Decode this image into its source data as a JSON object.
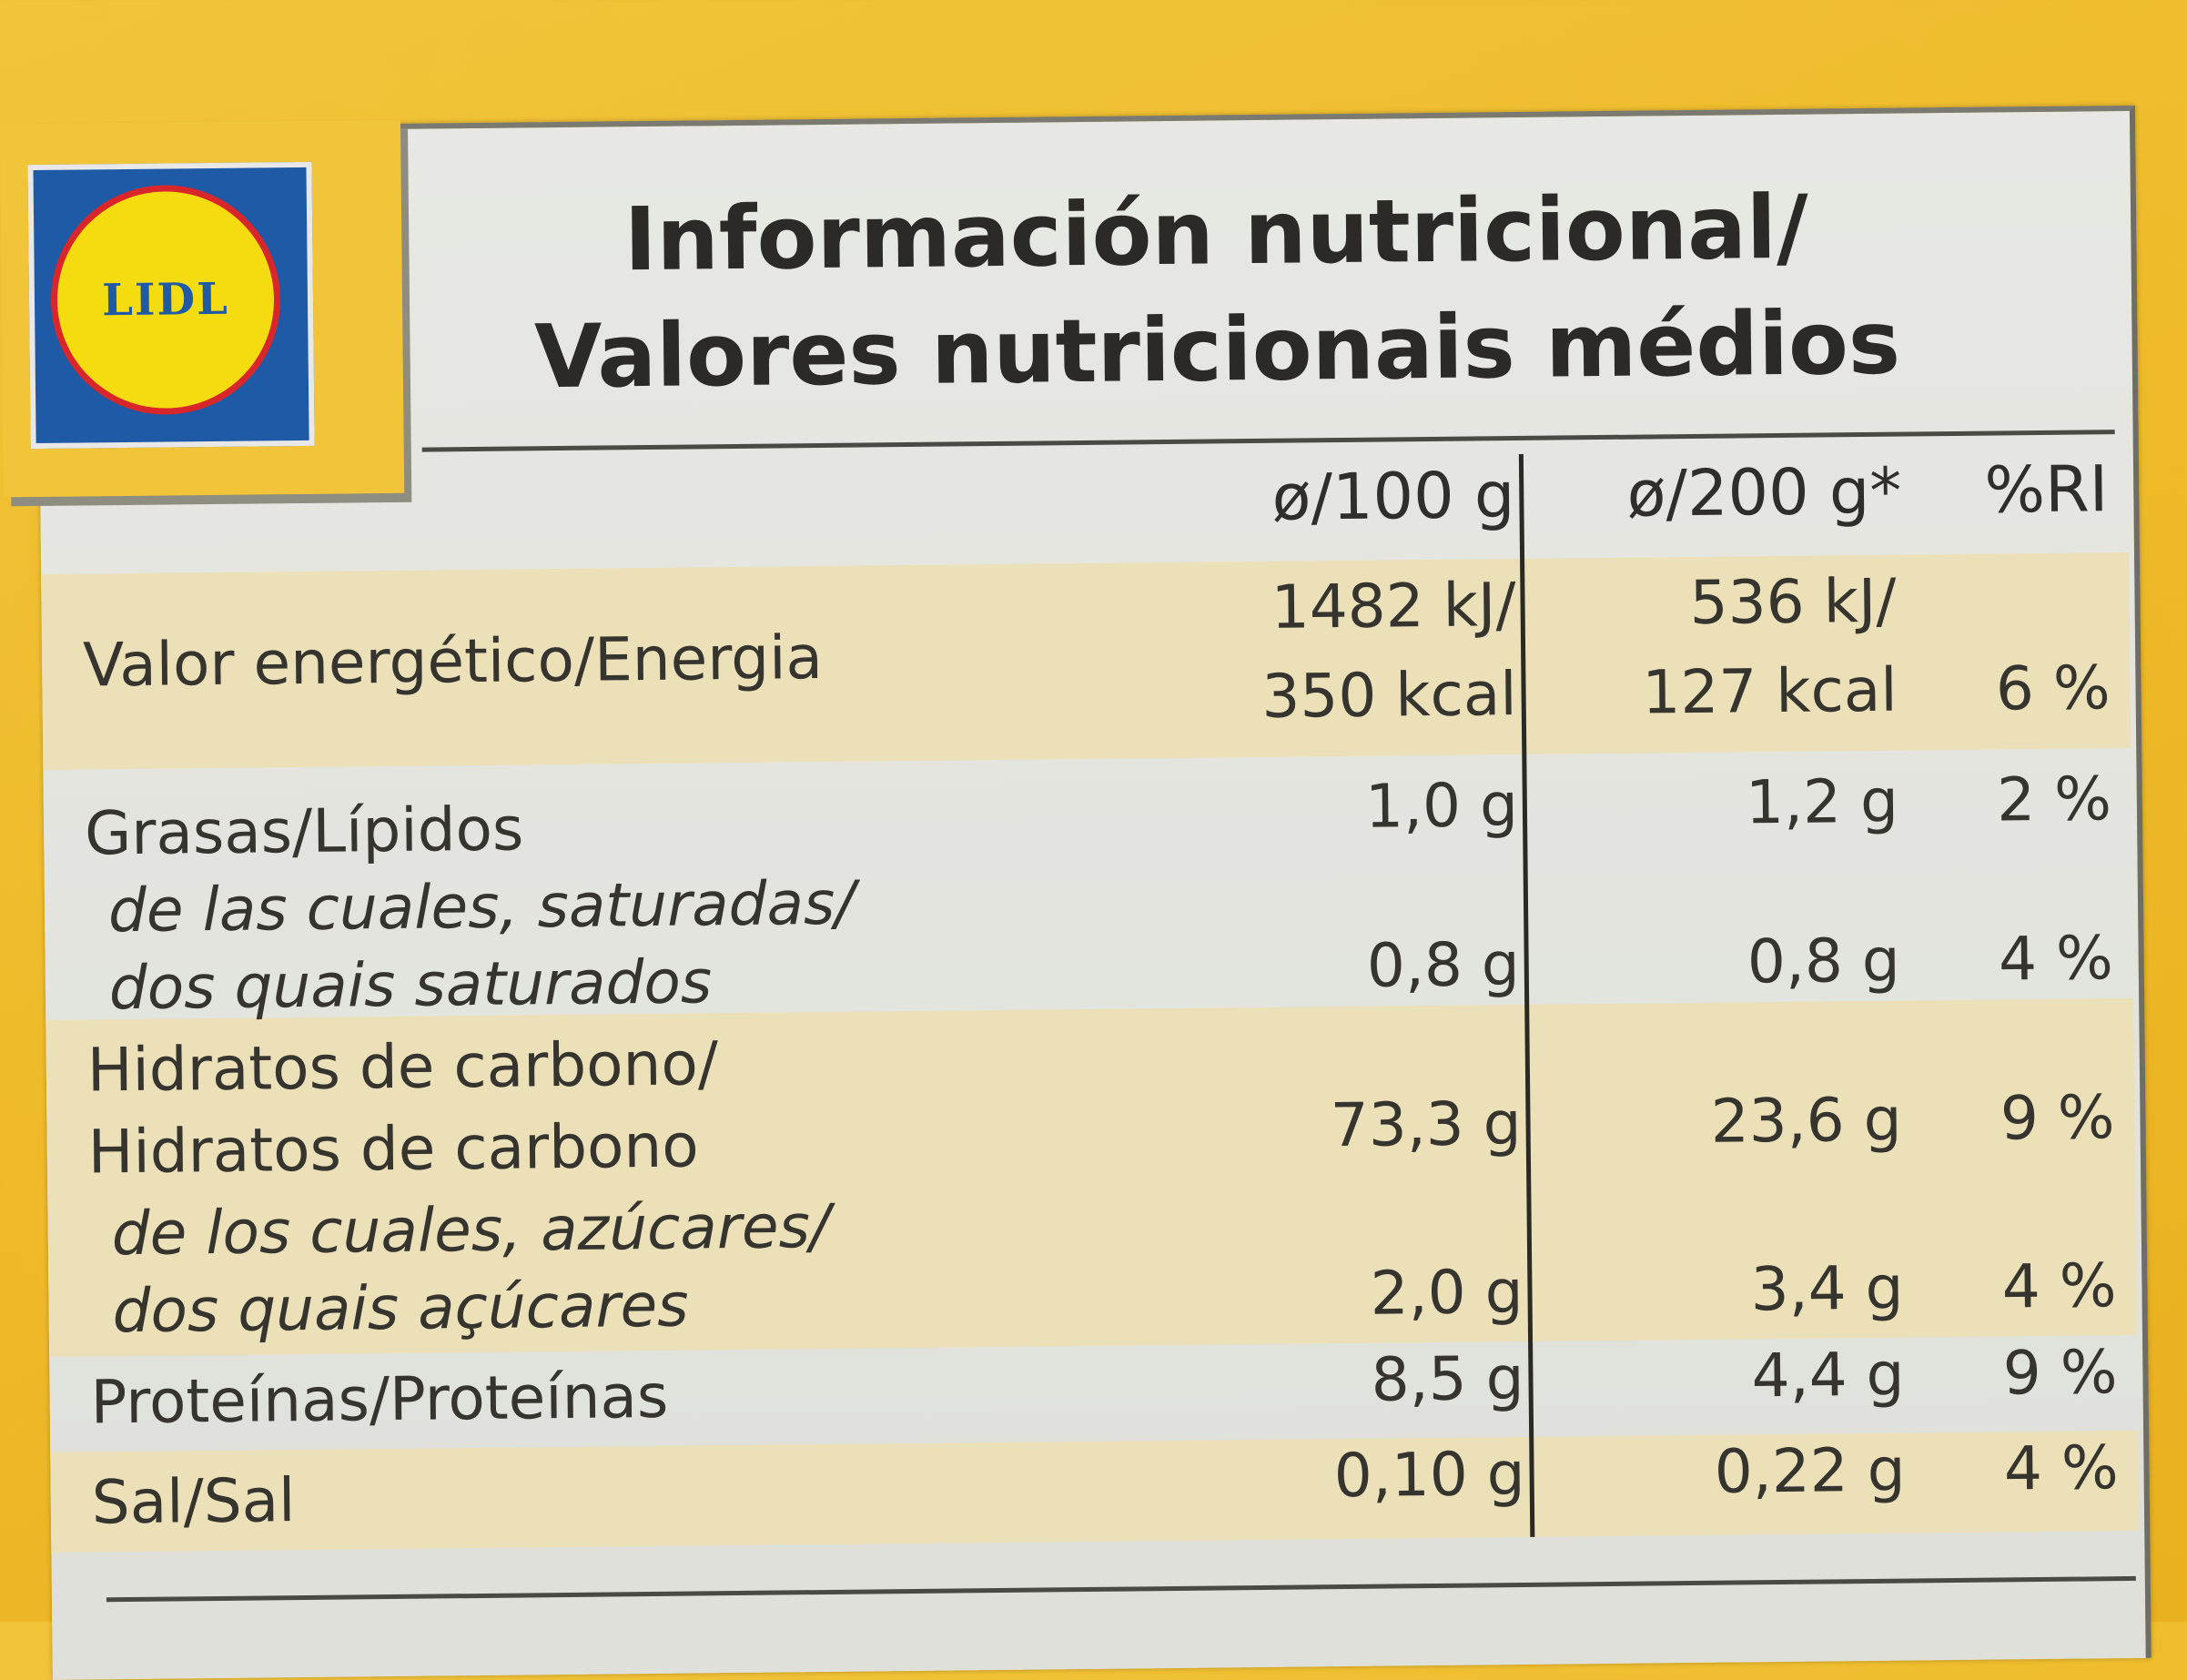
{
  "brand": {
    "logo_text": "LIDL",
    "blue": "#1f5aa6",
    "yellow": "#f5dc10",
    "red": "#d9262a"
  },
  "title": {
    "line1": "Información nutricional/",
    "line2": "Valores nutricionais médios"
  },
  "columns": {
    "per100": "ø/100 g",
    "per200": "ø/200 g*",
    "ri": "%RI"
  },
  "rows": {
    "energy": {
      "label": "Valor energético/Energia",
      "per100_kj": "1482 kJ/",
      "per100_kcal": "350 kcal",
      "per200_kj": "536 kJ/",
      "per200_kcal": "127 kcal",
      "ri": "6 %"
    },
    "fat": {
      "label": "Grasas/Lípidos",
      "per100": "1,0 g",
      "per200": "1,2 g",
      "ri": "2 %"
    },
    "saturates": {
      "label_line1": "de las cuales, saturadas/",
      "label_line2": "dos quais saturados",
      "per100": "0,8 g",
      "per200": "0,8 g",
      "ri": "4 %"
    },
    "carbs": {
      "label_line1": "Hidratos de carbono/",
      "label_line2": "Hidratos de carbono",
      "per100": "73,3 g",
      "per200": "23,6 g",
      "ri": "9 %"
    },
    "sugars": {
      "label_line1": "de los cuales, azúcares/",
      "label_line2": "dos quais açúcares",
      "per100": "2,0 g",
      "per200": "3,4 g",
      "ri": "4 %"
    },
    "protein": {
      "label": "Proteínas/Proteínas",
      "per100": "8,5 g",
      "per200": "4,4 g",
      "ri": "9 %"
    },
    "salt": {
      "label": "Sal/Sal",
      "per100": "0,10 g",
      "per200": "0,22 g",
      "ri": "4 %"
    }
  }
}
